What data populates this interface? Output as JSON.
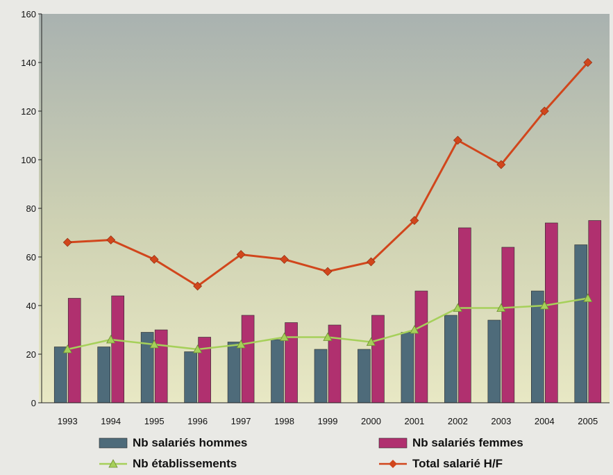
{
  "chart_data": {
    "type": "bar",
    "categories": [
      "1993",
      "1994",
      "1995",
      "1996",
      "1997",
      "1998",
      "1999",
      "2000",
      "2001",
      "2002",
      "2003",
      "2004",
      "2005"
    ],
    "ylim": [
      0,
      160
    ],
    "yticks": [
      0,
      20,
      40,
      60,
      80,
      100,
      120,
      140,
      160
    ],
    "grid": false,
    "legend_position": "bottom",
    "series": [
      {
        "name": "Nb salariés hommes",
        "kind": "bar",
        "color": "#4e6b7a",
        "values": [
          23,
          23,
          29,
          21,
          25,
          26,
          22,
          22,
          29,
          36,
          34,
          46,
          65
        ]
      },
      {
        "name": "Nb salariés femmes",
        "kind": "bar",
        "color": "#b0306f",
        "values": [
          43,
          44,
          30,
          27,
          36,
          33,
          32,
          36,
          46,
          72,
          64,
          74,
          75
        ]
      },
      {
        "name": "Nb établissements",
        "kind": "line",
        "marker": "triangle",
        "color": "#a6d05a",
        "values": [
          22,
          26,
          24,
          22,
          24,
          27,
          27,
          25,
          30,
          39,
          39,
          40,
          43
        ]
      },
      {
        "name": "Total salarié H/F",
        "kind": "line",
        "marker": "diamond",
        "color": "#d1461c",
        "values": [
          66,
          67,
          59,
          48,
          61,
          59,
          54,
          58,
          75,
          108,
          98,
          120,
          140
        ]
      }
    ]
  }
}
